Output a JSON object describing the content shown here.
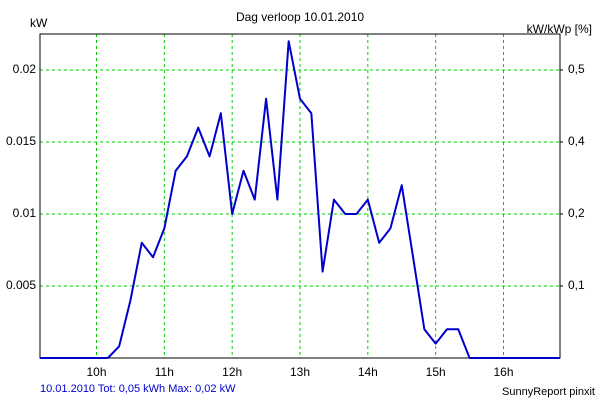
{
  "chart_data": {
    "type": "line",
    "title": "Dag  verloop 10.01.2010",
    "y_label": "kW",
    "y2_label": "kW/kWp [%]",
    "footer_left": "10.01.2010 Tot: 0,05 kWh Max: 0,02 kW",
    "footer_right": "SunnyReport pinxit",
    "x": [
      9.167,
      9.333,
      9.5,
      9.667,
      9.833,
      10,
      10.167,
      10.333,
      10.5,
      10.667,
      10.833,
      11,
      11.167,
      11.333,
      11.5,
      11.667,
      11.833,
      12,
      12.167,
      12.333,
      12.5,
      12.667,
      12.833,
      13,
      13.167,
      13.333,
      13.5,
      13.667,
      13.833,
      14,
      14.167,
      14.333,
      14.5,
      14.667,
      14.833,
      15,
      15.167,
      15.333,
      15.5,
      15.667,
      15.833,
      16,
      16.167,
      16.333,
      16.5,
      16.667,
      16.833
    ],
    "series": [
      {
        "color": "#0000cc",
        "values": [
          0,
          0,
          0,
          0,
          0,
          0,
          0,
          0.0008,
          0.004,
          0.008,
          0.007,
          0.009,
          0.013,
          0.014,
          0.016,
          0.014,
          0.017,
          0.01,
          0.013,
          0.011,
          0.018,
          0.011,
          0.022,
          0.018,
          0.017,
          0.006,
          0.011,
          0.01,
          0.01,
          0.011,
          0.008,
          0.009,
          0.012,
          0.007,
          0.002,
          0.001,
          0.002,
          0.002,
          0,
          0,
          0,
          0,
          0,
          0,
          0,
          0,
          0
        ]
      }
    ],
    "xlim": [
      9.167,
      16.833
    ],
    "xticks": [
      {
        "value": 10,
        "label": "10h"
      },
      {
        "value": 11,
        "label": "11h"
      },
      {
        "value": 12,
        "label": "12h"
      },
      {
        "value": 13,
        "label": "13h"
      },
      {
        "value": 14,
        "label": "14h"
      },
      {
        "value": 15,
        "label": "15h"
      },
      {
        "value": 16,
        "label": "16h"
      }
    ],
    "ylim": [
      0,
      0.0225
    ],
    "yticks": [
      0.005,
      0.01,
      0.015,
      0.02
    ],
    "y2lim": [
      0,
      0.5625
    ],
    "y2ticks": [
      {
        "value": 0.125,
        "label": "0,1"
      },
      {
        "value": 0.25,
        "label": "0,2"
      },
      {
        "value": 0.375,
        "label": "0,4"
      },
      {
        "value": 0.5,
        "label": "0,5"
      }
    ],
    "grid": true
  }
}
